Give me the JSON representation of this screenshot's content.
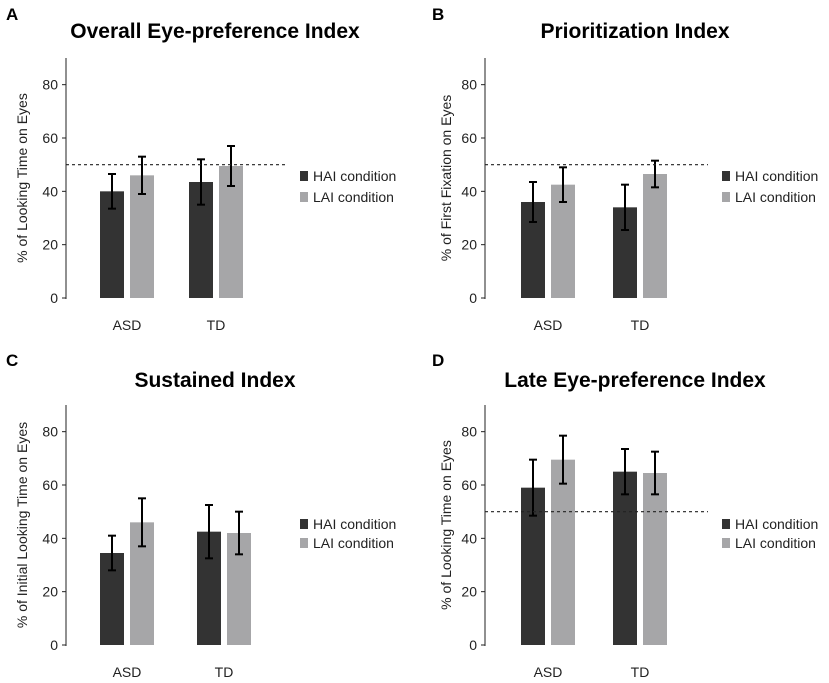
{
  "colors": {
    "hai": "#333333",
    "lai": "#a6a6a8",
    "axis": "#222222",
    "error": "#000000",
    "reference": "#222222"
  },
  "legend": {
    "hai": "HAI condition",
    "lai": "LAI condition"
  },
  "chart_data": [
    {
      "panel": "A",
      "type": "bar",
      "title": "Overall Eye-preference Index",
      "ylabel": "% of Looking Time on Eyes",
      "categories": [
        "ASD",
        "TD"
      ],
      "ylim": [
        0,
        90
      ],
      "yticks": [
        0,
        20,
        40,
        60,
        80
      ],
      "reference_line": 50,
      "series": [
        {
          "name": "HAI condition",
          "values": [
            40,
            43.5
          ],
          "errors": [
            6.5,
            8.5
          ]
        },
        {
          "name": "LAI condition",
          "values": [
            46,
            49.5
          ],
          "errors": [
            7,
            7.5
          ]
        }
      ]
    },
    {
      "panel": "B",
      "type": "bar",
      "title": "Prioritization Index",
      "ylabel": "% of First Fixation on Eyes",
      "categories": [
        "ASD",
        "TD"
      ],
      "ylim": [
        0,
        90
      ],
      "yticks": [
        0,
        20,
        40,
        60,
        80
      ],
      "reference_line": 50,
      "series": [
        {
          "name": "HAI condition",
          "values": [
            36,
            34
          ],
          "errors": [
            7.5,
            8.5
          ]
        },
        {
          "name": "LAI condition",
          "values": [
            42.5,
            46.5
          ],
          "errors": [
            6.5,
            5
          ]
        }
      ]
    },
    {
      "panel": "C",
      "type": "bar",
      "title": "Sustained Index",
      "ylabel": "% of Initial Looking Time on Eyes",
      "categories": [
        "ASD",
        "TD"
      ],
      "ylim": [
        0,
        90
      ],
      "yticks": [
        0,
        20,
        40,
        60,
        80
      ],
      "reference_line": null,
      "series": [
        {
          "name": "HAI condition",
          "values": [
            34.5,
            42.5
          ],
          "errors": [
            6.5,
            10
          ]
        },
        {
          "name": "LAI condition",
          "values": [
            46,
            42
          ],
          "errors": [
            9,
            8
          ]
        }
      ]
    },
    {
      "panel": "D",
      "type": "bar",
      "title": "Late Eye-preference Index",
      "ylabel": "% of Looking Time on Eyes",
      "categories": [
        "ASD",
        "TD"
      ],
      "ylim": [
        0,
        90
      ],
      "yticks": [
        0,
        20,
        40,
        60,
        80
      ],
      "reference_line": 50,
      "series": [
        {
          "name": "HAI condition",
          "values": [
            59,
            65
          ],
          "errors": [
            10.5,
            8.5
          ]
        },
        {
          "name": "LAI condition",
          "values": [
            69.5,
            64.5
          ],
          "errors": [
            9,
            8
          ]
        }
      ]
    }
  ]
}
